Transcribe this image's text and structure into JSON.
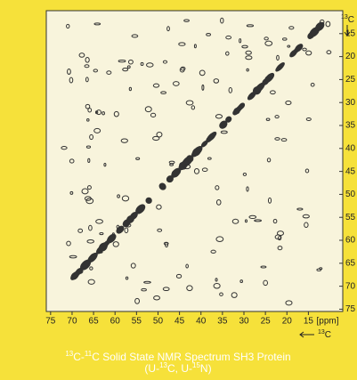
{
  "chart_data": {
    "type": "nmr2d",
    "x_label": [
      "13",
      "C"
    ],
    "y_label": [
      "13",
      "C"
    ],
    "x_unit": "[ppm]",
    "xlim": [
      76,
      7
    ],
    "ylim": [
      10,
      75.5
    ],
    "xticks": [
      75,
      70,
      65,
      60,
      55,
      50,
      45,
      40,
      35,
      30,
      25,
      20,
      15
    ],
    "yticks": [
      15,
      20,
      25,
      30,
      35,
      40,
      45,
      50,
      55,
      60,
      65,
      70,
      75
    ],
    "caption": [
      [
        "13",
        "C-",
        "11",
        "C Solid State NMR Spectrum SH3 Protein"
      ],
      [
        "(U-",
        "13",
        "C, U-",
        "15",
        "N)"
      ]
    ],
    "caption_sup": [
      [
        0,
        2
      ],
      [
        1,
        3
      ]
    ]
  }
}
